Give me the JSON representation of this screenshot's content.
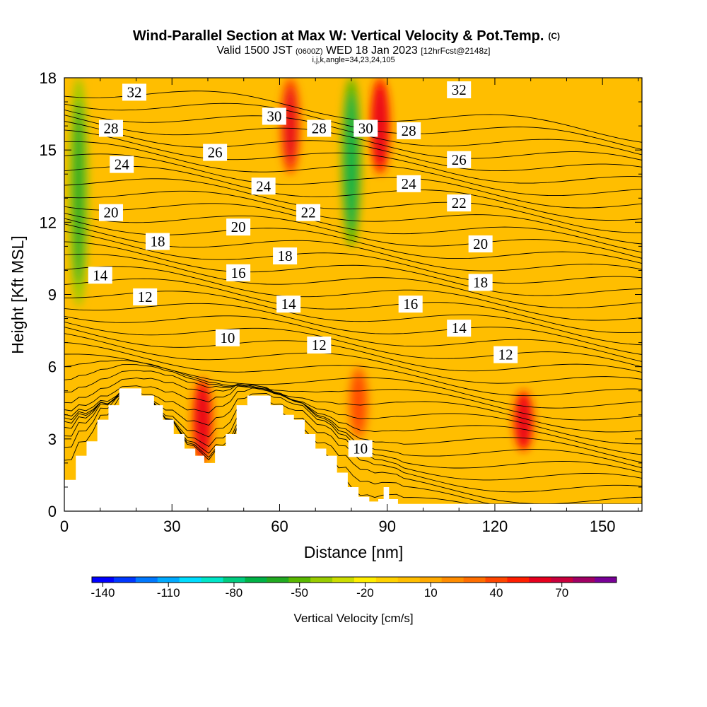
{
  "chart_data": {
    "type": "heatmap",
    "title": "Wind-Parallel Section at Max W: Vertical Velocity & Pot.Temp.",
    "title_mark": "(C)",
    "subtitle_parts": [
      "Valid 1500 JST",
      "(0600Z)",
      "WED 18 Jan 2023",
      "[12hrFcst@2148z]"
    ],
    "subtitle2": "i,j,k,angle=34,23,24,105",
    "xlabel": "Distance [nm]",
    "ylabel": "Height [Kft MSL]",
    "xlim": [
      0,
      161
    ],
    "ylim": [
      0,
      18
    ],
    "xticks": [
      "0",
      "30",
      "60",
      "90",
      "120",
      "150"
    ],
    "xtick_values": [
      0,
      30,
      60,
      90,
      120,
      150
    ],
    "yticks": [
      "0",
      "3",
      "6",
      "9",
      "12",
      "15",
      "18"
    ],
    "ytick_values": [
      0,
      3,
      6,
      9,
      12,
      15,
      18
    ],
    "colorbar": {
      "label": "Vertical Velocity [cm/s]",
      "tick_labels": [
        "-140",
        "-110",
        "-80",
        "-50",
        "-20",
        "10",
        "40",
        "70"
      ],
      "tick_values": [
        -140,
        -110,
        -80,
        -50,
        -20,
        10,
        40,
        70
      ],
      "range": [
        -145,
        95
      ],
      "colors": [
        "#0000ff",
        "#0037ff",
        "#0078ff",
        "#00aaff",
        "#00ddff",
        "#00e6c8",
        "#00cc80",
        "#00b246",
        "#21aa21",
        "#59b800",
        "#99cc00",
        "#ccdd00",
        "#ffee00",
        "#ffd200",
        "#ffbe00",
        "#ffaa00",
        "#ff8c00",
        "#ff6e00",
        "#ff4600",
        "#ff1e00",
        "#e6001e",
        "#c8003c",
        "#a00064",
        "#780096"
      ]
    },
    "velocity_features": [
      {
        "x": 4,
        "z0": 8.5,
        "z1": 18,
        "w": -45
      },
      {
        "x": 80,
        "z0": 11,
        "z1": 18,
        "w": -50
      },
      {
        "x": 88,
        "z0": 14,
        "z1": 18,
        "w": 45
      },
      {
        "x": 63,
        "z0": 14,
        "z1": 18,
        "w": 40
      },
      {
        "x": 38.5,
        "z0": 2,
        "z1": 5.5,
        "w": 45
      },
      {
        "x": 128,
        "z0": 2.5,
        "z1": 5,
        "w": 45
      },
      {
        "x": 82,
        "z0": 3,
        "z1": 6,
        "w": 30
      }
    ],
    "theta_contour_labels": [
      {
        "label": "32",
        "x": 19.5,
        "z": 17.4
      },
      {
        "label": "28",
        "x": 13,
        "z": 15.9
      },
      {
        "label": "24",
        "x": 16,
        "z": 14.4
      },
      {
        "label": "20",
        "x": 13,
        "z": 12.4
      },
      {
        "label": "14",
        "x": 10,
        "z": 9.8
      },
      {
        "label": "12",
        "x": 22.5,
        "z": 8.9
      },
      {
        "label": "18",
        "x": 26,
        "z": 11.2
      },
      {
        "label": "26",
        "x": 42,
        "z": 14.9
      },
      {
        "label": "20",
        "x": 48.5,
        "z": 11.8
      },
      {
        "label": "16",
        "x": 48.5,
        "z": 9.9
      },
      {
        "label": "10",
        "x": 45.5,
        "z": 7.2
      },
      {
        "label": "30",
        "x": 58.5,
        "z": 16.4
      },
      {
        "label": "24",
        "x": 55.5,
        "z": 13.5
      },
      {
        "label": "18",
        "x": 61.5,
        "z": 10.6
      },
      {
        "label": "14",
        "x": 62.5,
        "z": 8.6
      },
      {
        "label": "28",
        "x": 71,
        "z": 15.9
      },
      {
        "label": "22",
        "x": 68,
        "z": 12.4
      },
      {
        "label": "12",
        "x": 71,
        "z": 6.9
      },
      {
        "label": "30",
        "x": 84,
        "z": 15.9
      },
      {
        "label": "10",
        "x": 82.5,
        "z": 2.6
      },
      {
        "label": "28",
        "x": 96,
        "z": 15.8
      },
      {
        "label": "24",
        "x": 96,
        "z": 13.6
      },
      {
        "label": "16",
        "x": 96.5,
        "z": 8.6
      },
      {
        "label": "32",
        "x": 110,
        "z": 17.5
      },
      {
        "label": "26",
        "x": 110,
        "z": 14.6
      },
      {
        "label": "22",
        "x": 110,
        "z": 12.8
      },
      {
        "label": "14",
        "x": 110,
        "z": 7.6
      },
      {
        "label": "20",
        "x": 116,
        "z": 11.1
      },
      {
        "label": "18",
        "x": 116,
        "z": 9.5
      },
      {
        "label": "12",
        "x": 123,
        "z": 6.5
      }
    ],
    "terrain": [
      [
        0,
        1.3
      ],
      [
        3.2,
        2.3
      ],
      [
        6.2,
        2.9
      ],
      [
        9.2,
        3.8
      ],
      [
        12.3,
        4.4
      ],
      [
        15.3,
        5.1
      ],
      [
        20,
        5.1
      ],
      [
        21.5,
        4.8
      ],
      [
        25,
        4.4
      ],
      [
        27.5,
        3.8
      ],
      [
        30.5,
        3.2
      ],
      [
        33.5,
        2.6
      ],
      [
        36.5,
        2.3
      ],
      [
        39,
        2.0
      ],
      [
        42,
        2.7
      ],
      [
        45,
        3.2
      ],
      [
        48,
        4.4
      ],
      [
        51,
        4.8
      ],
      [
        55,
        4.8
      ],
      [
        57.5,
        4.4
      ],
      [
        61,
        4.0
      ],
      [
        64,
        3.8
      ],
      [
        67,
        3.2
      ],
      [
        70,
        2.6
      ],
      [
        73,
        2.3
      ],
      [
        76,
        1.6
      ],
      [
        79,
        1.0
      ],
      [
        82,
        0.6
      ],
      [
        85,
        0.4
      ],
      [
        87.5,
        0.5
      ],
      [
        89,
        1.0
      ],
      [
        90.5,
        0.5
      ],
      [
        93,
        0.3
      ],
      [
        161,
        0.3
      ]
    ]
  }
}
